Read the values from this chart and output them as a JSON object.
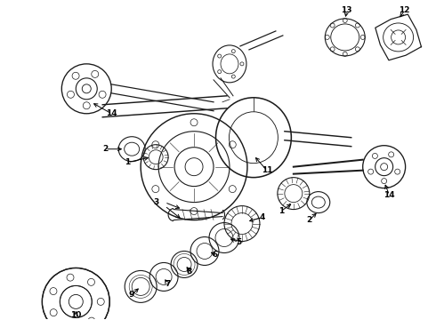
{
  "bg_color": "#ffffff",
  "line_color": "#1a1a1a",
  "label_color": "#000000",
  "label_fontsize": 6.5,
  "fig_width": 4.9,
  "fig_height": 3.6,
  "dpi": 100,
  "xlim": [
    0,
    490
  ],
  "ylim": [
    0,
    360
  ]
}
